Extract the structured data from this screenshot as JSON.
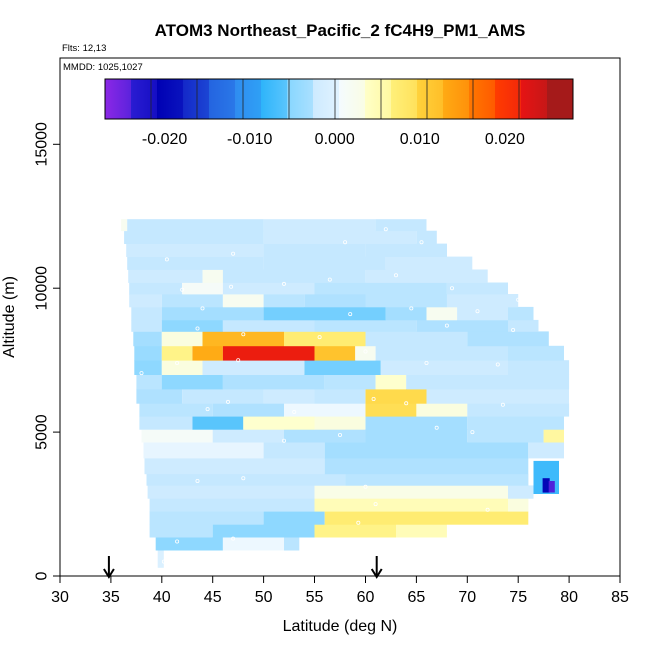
{
  "chart_data": {
    "type": "heatmap",
    "title": "ATOM3 Northeast_Pacific_2 fC4H9_PM1_AMS",
    "subtitles": [
      "Flts: 12,13",
      "MMDD: 1025,1027"
    ],
    "xlabel": "Latitude (deg N)",
    "ylabel": "Altitude (m)",
    "xlim": [
      30,
      85
    ],
    "ylim": [
      0,
      18000
    ],
    "xticks": [
      "30",
      "35",
      "40",
      "45",
      "50",
      "55",
      "60",
      "65",
      "70",
      "75",
      "80",
      "85"
    ],
    "yticks": [
      "0",
      "5000",
      "10000",
      "15000"
    ],
    "colorbar": {
      "range": [
        -0.027,
        0.028
      ],
      "tick_values": [
        -0.02,
        -0.01,
        0.0,
        0.01,
        0.02
      ],
      "tick_labels": [
        "-0.020",
        "-0.010",
        "0.000",
        "0.010",
        "0.020"
      ],
      "colors": [
        "#8c28e6",
        "#2a1cd2",
        "#0000b4",
        "#1428c8",
        "#2464e0",
        "#2f8cf0",
        "#2eb4fa",
        "#86d6ff",
        "#cdeaff",
        "#f4fbff",
        "#ffffc8",
        "#fff07a",
        "#ffd23c",
        "#ffaa14",
        "#ff7800",
        "#ff3c00",
        "#e61414",
        "#a51a1a"
      ]
    },
    "profile_markers_lat": [
      34.8,
      61.1
    ],
    "bands": [
      {
        "alt": [
          300,
          900
        ],
        "segs": [
          [
            39.6,
            40.2,
            0.0
          ]
        ]
      },
      {
        "alt": [
          900,
          1350
        ],
        "segs": [
          [
            39.4,
            46.0,
            -0.004
          ],
          [
            46.0,
            52.0,
            0.0015
          ],
          [
            52.0,
            53.5,
            -0.002
          ]
        ]
      },
      {
        "alt": [
          1350,
          1800
        ],
        "segs": [
          [
            38.8,
            45.0,
            -0.002
          ],
          [
            45.0,
            55.0,
            -0.004
          ],
          [
            55.0,
            63.0,
            0.008
          ],
          [
            63.0,
            68.0,
            0.006
          ]
        ]
      },
      {
        "alt": [
          1800,
          2250
        ],
        "segs": [
          [
            38.8,
            50.0,
            -0.002
          ],
          [
            50.0,
            56.0,
            -0.004
          ],
          [
            56.0,
            76.0,
            0.009
          ]
        ]
      },
      {
        "alt": [
          2250,
          2700
        ],
        "segs": [
          [
            38.8,
            55.0,
            -0.0015
          ],
          [
            55.0,
            74.0,
            0.006
          ],
          [
            74.0,
            76.0,
            0.004
          ]
        ]
      },
      {
        "alt": [
          2700,
          3150
        ],
        "segs": [
          [
            38.6,
            55.0,
            -0.001
          ],
          [
            55.0,
            74.0,
            0.0035
          ],
          [
            74.0,
            76.5,
            -0.001
          ]
        ]
      },
      {
        "alt": [
          3150,
          3550
        ],
        "segs": [
          [
            38.5,
            58.0,
            -0.0015
          ],
          [
            58.0,
            76.0,
            -0.002
          ]
        ]
      },
      {
        "alt": [
          3550,
          4100
        ],
        "segs": [
          [
            38.3,
            56.0,
            -0.001
          ],
          [
            56.0,
            76.0,
            -0.0025
          ]
        ]
      },
      {
        "alt": [
          4100,
          4650
        ],
        "segs": [
          [
            38.2,
            50.0,
            0.001
          ],
          [
            50.0,
            56.0,
            -0.0015
          ],
          [
            56.0,
            76.0,
            -0.003
          ],
          [
            76.0,
            79.5,
            -0.001
          ]
        ]
      },
      {
        "alt": [
          4650,
          5100
        ],
        "segs": [
          [
            38.0,
            45.0,
            0.0025
          ],
          [
            45.0,
            52.0,
            -0.001
          ],
          [
            52.0,
            60.0,
            -0.0025
          ],
          [
            60.0,
            70.0,
            -0.003
          ],
          [
            70.0,
            77.5,
            -0.002
          ],
          [
            77.5,
            79.5,
            0.007
          ]
        ]
      },
      {
        "alt": [
          5100,
          5550
        ],
        "segs": [
          [
            37.8,
            43.0,
            -0.0015
          ],
          [
            43.0,
            48.0,
            -0.006
          ],
          [
            48.0,
            55.0,
            0.005
          ],
          [
            55.0,
            60.0,
            0.004
          ],
          [
            60.0,
            70.0,
            -0.003
          ],
          [
            70.0,
            79.5,
            -0.002
          ]
        ]
      },
      {
        "alt": [
          5550,
          6000
        ],
        "segs": [
          [
            37.8,
            45.0,
            -0.002
          ],
          [
            45.0,
            52.0,
            -0.0025
          ],
          [
            52.0,
            60.0,
            0.0015
          ],
          [
            60.0,
            65.0,
            0.0105
          ],
          [
            65.0,
            70.0,
            0.004
          ],
          [
            70.0,
            80.0,
            -0.0015
          ]
        ]
      },
      {
        "alt": [
          6000,
          6500
        ],
        "segs": [
          [
            37.5,
            42.0,
            -0.0025
          ],
          [
            42.0,
            50.0,
            -0.0015
          ],
          [
            50.0,
            55.0,
            -0.001
          ],
          [
            55.0,
            60.0,
            -0.0015
          ],
          [
            60.0,
            66.0,
            0.011
          ],
          [
            66.0,
            80.0,
            -0.001
          ]
        ]
      },
      {
        "alt": [
          6500,
          7000
        ],
        "segs": [
          [
            37.5,
            40.0,
            -0.002
          ],
          [
            40.0,
            46.0,
            -0.004
          ],
          [
            46.0,
            56.0,
            -0.0025
          ],
          [
            56.0,
            61.0,
            -0.002
          ],
          [
            61.0,
            64.0,
            0.005
          ],
          [
            64.0,
            80.0,
            -0.0015
          ]
        ]
      },
      {
        "alt": [
          7000,
          7500
        ],
        "segs": [
          [
            37.3,
            40.0,
            -0.004
          ],
          [
            40.0,
            44.0,
            0.004
          ],
          [
            44.0,
            54.0,
            -0.001
          ],
          [
            54.0,
            61.5,
            -0.005
          ],
          [
            61.5,
            74.0,
            -0.001
          ],
          [
            74.0,
            80.0,
            -0.0015
          ]
        ]
      },
      {
        "alt": [
          7500,
          8000
        ],
        "segs": [
          [
            37.3,
            40.0,
            -0.0035
          ],
          [
            40.0,
            43.0,
            0.008
          ],
          [
            43.0,
            46.0,
            0.015
          ],
          [
            46.0,
            55.0,
            0.024
          ],
          [
            55.0,
            59.0,
            0.013
          ],
          [
            59.0,
            61.0,
            0.003
          ],
          [
            61.0,
            74.0,
            -0.0015
          ],
          [
            74.0,
            79.5,
            -0.002
          ]
        ]
      },
      {
        "alt": [
          8000,
          8500
        ],
        "segs": [
          [
            37.2,
            40.0,
            -0.003
          ],
          [
            40.0,
            44.0,
            0.004
          ],
          [
            44.0,
            52.0,
            0.014
          ],
          [
            52.0,
            60.0,
            0.009
          ],
          [
            60.0,
            70.0,
            -0.0015
          ],
          [
            70.0,
            78.0,
            -0.0025
          ]
        ]
      },
      {
        "alt": [
          8500,
          8900
        ],
        "segs": [
          [
            37.0,
            40.0,
            -0.0015
          ],
          [
            40.0,
            46.0,
            -0.004
          ],
          [
            46.0,
            55.0,
            -0.0015
          ],
          [
            55.0,
            65.0,
            -0.002
          ],
          [
            65.0,
            74.0,
            -0.0025
          ],
          [
            74.0,
            77.0,
            -0.0015
          ]
        ]
      },
      {
        "alt": [
          8900,
          9350
        ],
        "segs": [
          [
            37.0,
            40.0,
            -0.0015
          ],
          [
            40.0,
            50.0,
            -0.003
          ],
          [
            50.0,
            62.0,
            -0.005
          ],
          [
            62.0,
            66.0,
            -0.003
          ],
          [
            66.0,
            69.0,
            0.003
          ],
          [
            69.0,
            74.0,
            -0.001
          ],
          [
            74.0,
            76.5,
            -0.002
          ]
        ]
      },
      {
        "alt": [
          9350,
          9800
        ],
        "segs": [
          [
            36.8,
            40.0,
            -0.001
          ],
          [
            40.0,
            46.0,
            -0.002
          ],
          [
            46.0,
            50.0,
            0.003
          ],
          [
            50.0,
            54.0,
            -0.002
          ],
          [
            54.0,
            60.0,
            -0.0025
          ],
          [
            60.0,
            68.0,
            -0.002
          ],
          [
            68.0,
            75.0,
            -0.001
          ]
        ]
      },
      {
        "alt": [
          9800,
          10200
        ],
        "segs": [
          [
            36.8,
            42.0,
            -0.0015
          ],
          [
            42.0,
            46.0,
            0.0025
          ],
          [
            46.0,
            55.0,
            -0.001
          ],
          [
            55.0,
            68.0,
            -0.002
          ],
          [
            68.0,
            74.0,
            -0.0015
          ]
        ]
      },
      {
        "alt": [
          10200,
          10650
        ],
        "segs": [
          [
            36.7,
            44.0,
            -0.001
          ],
          [
            44.0,
            46.0,
            0.003
          ],
          [
            46.0,
            60.0,
            -0.0015
          ],
          [
            60.0,
            72.0,
            -0.001
          ]
        ]
      },
      {
        "alt": [
          10650,
          11100
        ],
        "segs": [
          [
            36.6,
            50.0,
            -0.0015
          ],
          [
            50.0,
            62.0,
            -0.0015
          ],
          [
            62.0,
            70.5,
            -0.001
          ]
        ]
      },
      {
        "alt": [
          11100,
          11550
        ],
        "segs": [
          [
            36.5,
            50.0,
            -0.001
          ],
          [
            50.0,
            60.0,
            -0.0015
          ],
          [
            60.0,
            68.0,
            -0.0015
          ]
        ]
      },
      {
        "alt": [
          11550,
          12000
        ],
        "segs": [
          [
            36.3,
            50.0,
            -0.0015
          ],
          [
            50.0,
            65.0,
            -0.001
          ],
          [
            65.0,
            67.0,
            -0.0015
          ]
        ]
      },
      {
        "alt": [
          12000,
          12400
        ],
        "segs": [
          [
            36.0,
            36.6,
            0.003
          ],
          [
            36.6,
            50.0,
            -0.0015
          ],
          [
            50.0,
            61.0,
            -0.001
          ],
          [
            61.0,
            66.0,
            -0.0015
          ]
        ]
      }
    ],
    "small_patches": [
      {
        "lat": [
          76.5,
          79.0
        ],
        "alt": [
          2850,
          4000
        ],
        "value": -0.007
      },
      {
        "lat": [
          77.4,
          78.1
        ],
        "alt": [
          2900,
          3400
        ],
        "value": -0.02
      },
      {
        "lat": [
          78.0,
          78.6
        ],
        "alt": [
          2900,
          3300
        ],
        "value": -0.025
      }
    ],
    "sample_points": [
      [
        40.2,
        500
      ],
      [
        41.5,
        1200
      ],
      [
        47.0,
        1300
      ],
      [
        59.3,
        1850
      ],
      [
        61.0,
        2500
      ],
      [
        60.0,
        3100
      ],
      [
        72.0,
        2300
      ],
      [
        76.3,
        2450
      ],
      [
        43.5,
        3300
      ],
      [
        48.0,
        3400
      ],
      [
        52.0,
        4700
      ],
      [
        57.5,
        4900
      ],
      [
        67.0,
        5150
      ],
      [
        70.5,
        5000
      ],
      [
        44.5,
        5800
      ],
      [
        46.5,
        6050
      ],
      [
        53.0,
        5700
      ],
      [
        60.8,
        6150
      ],
      [
        64.0,
        6000
      ],
      [
        73.5,
        5950
      ],
      [
        47.5,
        7500
      ],
      [
        38.0,
        7050
      ],
      [
        41.5,
        7400
      ],
      [
        60.0,
        7800
      ],
      [
        66.0,
        7400
      ],
      [
        73.0,
        7350
      ],
      [
        43.5,
        8600
      ],
      [
        48.0,
        8400
      ],
      [
        55.5,
        8300
      ],
      [
        68.0,
        8700
      ],
      [
        74.5,
        8550
      ],
      [
        44.0,
        9300
      ],
      [
        58.5,
        9100
      ],
      [
        64.5,
        9300
      ],
      [
        71.0,
        9200
      ],
      [
        75.0,
        9600
      ],
      [
        42.0,
        9950
      ],
      [
        46.8,
        10050
      ],
      [
        52.0,
        10150
      ],
      [
        56.5,
        10300
      ],
      [
        63.0,
        10450
      ],
      [
        68.5,
        10000
      ],
      [
        40.5,
        11000
      ],
      [
        47.0,
        11200
      ],
      [
        58.0,
        11600
      ],
      [
        62.0,
        12050
      ],
      [
        65.5,
        11600
      ]
    ]
  }
}
